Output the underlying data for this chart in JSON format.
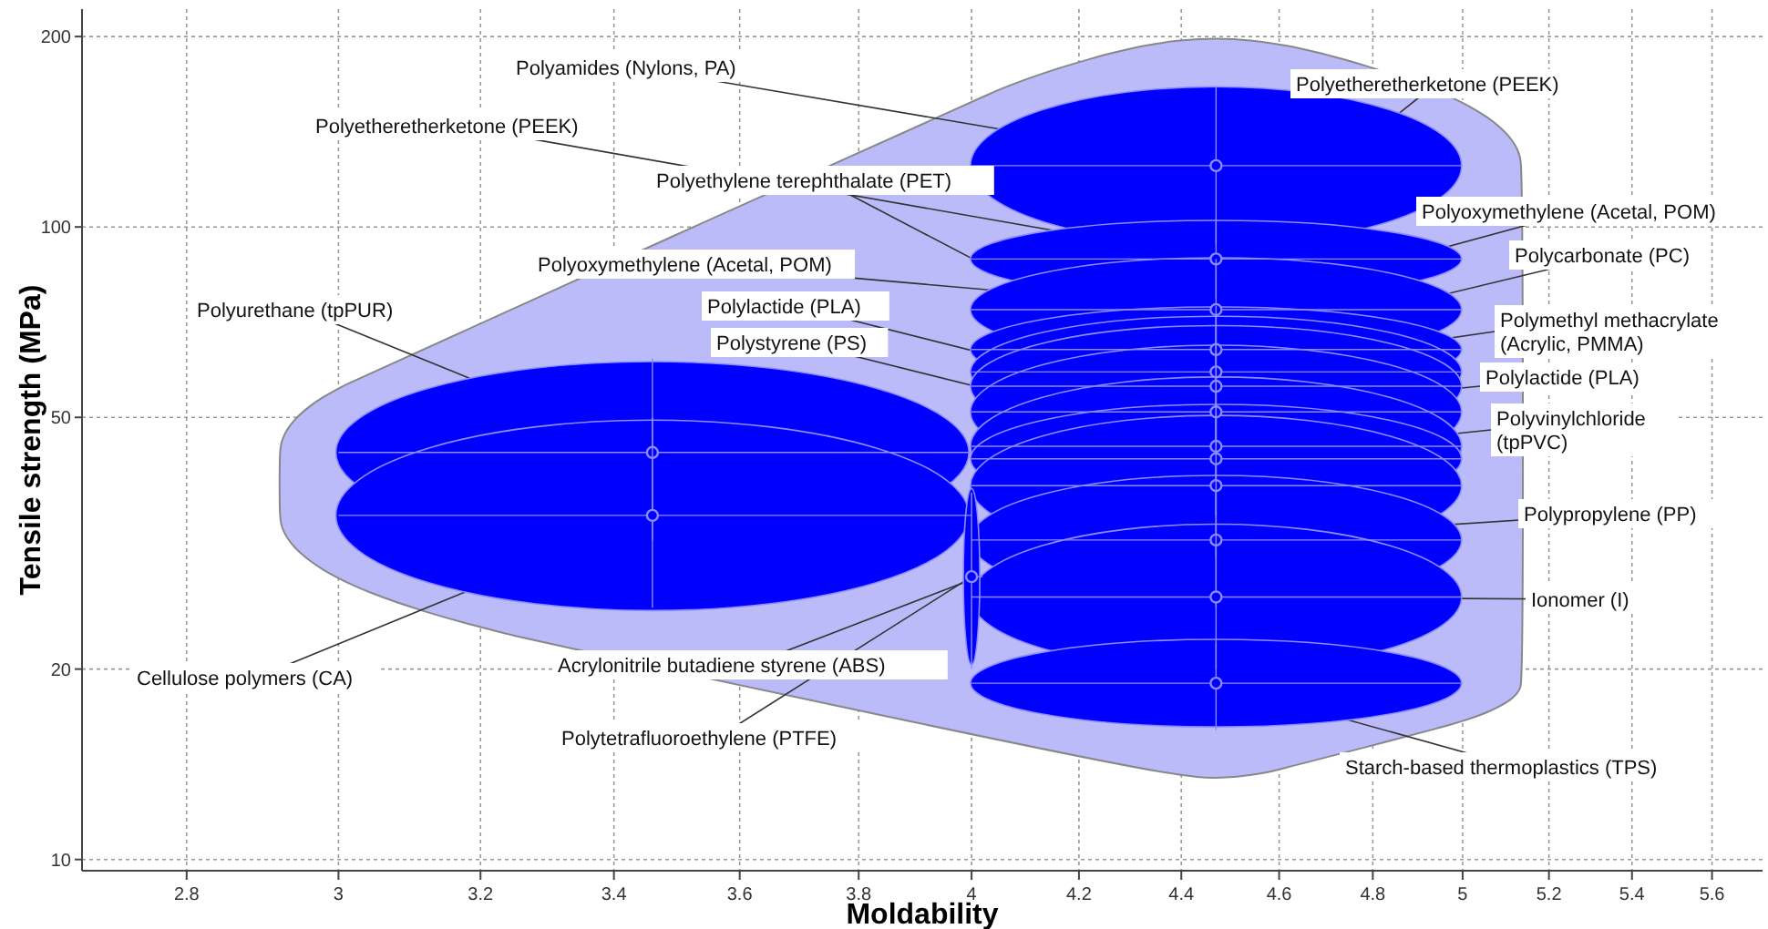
{
  "chart_data": {
    "type": "scatter",
    "xlabel": "Moldability",
    "ylabel": "Tensile strength (MPa)",
    "log": "xy",
    "grid": true,
    "marker": "circle",
    "xlim": [
      2.67,
      5.73
    ],
    "xticks": [
      2.8,
      3,
      3.2,
      3.4,
      3.6,
      3.8,
      4,
      4.2,
      4.4,
      4.6,
      4.8,
      5,
      5.2,
      5.4,
      5.6
    ],
    "ylim": [
      9.6,
      221
    ],
    "yticks": [
      10,
      20,
      50,
      100,
      200
    ],
    "series": [
      {
        "color": "#0000ff",
        "x": [
          3.46
        ],
        "values": [
          44
        ],
        "xerrors": [
          [
            3,
            4
          ]
        ],
        "errors": [
          [
            32,
            62
          ]
        ]
      },
      {
        "color": "#0000ff",
        "x": [
          3.46
        ],
        "values": [
          35
        ],
        "xerrors": [
          [
            3,
            4
          ]
        ],
        "errors": [
          [
            25,
            50
          ]
        ]
      },
      {
        "color": "#0000ff",
        "x": [
          4.47
        ],
        "values": [
          125
        ],
        "xerrors": [
          [
            4,
            5
          ]
        ],
        "errors": [
          [
            94,
            167
          ]
        ]
      },
      {
        "color": "#0000ff",
        "x": [
          4.47
        ],
        "values": [
          89
        ],
        "xerrors": [
          [
            4,
            5
          ]
        ],
        "errors": [
          [
            77,
            102
          ]
        ]
      },
      {
        "color": "#0000ff",
        "x": [
          4.47
        ],
        "values": [
          74
        ],
        "xerrors": [
          [
            4,
            5
          ]
        ],
        "errors": [
          [
            61,
            89
          ]
        ]
      },
      {
        "color": "#0000ff",
        "x": [
          4.47
        ],
        "values": [
          64
        ],
        "xerrors": [
          [
            4,
            5
          ]
        ],
        "errors": [
          [
            55,
            75
          ]
        ]
      },
      {
        "color": "#0000ff",
        "x": [
          4.47
        ],
        "values": [
          59
        ],
        "xerrors": [
          [
            4,
            5
          ]
        ],
        "errors": [
          [
            48,
            72
          ]
        ]
      },
      {
        "color": "#0000ff",
        "x": [
          4.47
        ],
        "values": [
          56
        ],
        "xerrors": [
          [
            4,
            5
          ]
        ],
        "errors": [
          [
            45,
            70
          ]
        ]
      },
      {
        "color": "#0000ff",
        "x": [
          4.47
        ],
        "values": [
          51
        ],
        "xerrors": [
          [
            4,
            5
          ]
        ],
        "errors": [
          [
            40,
            65
          ]
        ]
      },
      {
        "color": "#0000ff",
        "x": [
          4.47
        ],
        "values": [
          45
        ],
        "xerrors": [
          [
            4,
            5
          ]
        ],
        "errors": [
          [
            35,
            58
          ]
        ]
      },
      {
        "color": "#0000ff",
        "x": [
          4.47
        ],
        "values": [
          43
        ],
        "xerrors": [
          [
            4,
            5
          ]
        ],
        "errors": [
          [
            35,
            52
          ]
        ]
      },
      {
        "color": "#0000ff",
        "x": [
          4.47
        ],
        "values": [
          39
        ],
        "xerrors": [
          [
            4,
            5
          ]
        ],
        "errors": [
          [
            30,
            50
          ]
        ]
      },
      {
        "color": "#0000ff",
        "x": [
          4.47
        ],
        "values": [
          32
        ],
        "xerrors": [
          [
            4,
            5
          ]
        ],
        "errors": [
          [
            25,
            40
          ]
        ]
      },
      {
        "color": "#0000ff",
        "x": [
          4.47
        ],
        "values": [
          26
        ],
        "xerrors": [
          [
            4,
            5
          ]
        ],
        "errors": [
          [
            20,
            34
          ]
        ]
      },
      {
        "color": "#0000ff",
        "x": [
          4.47
        ],
        "values": [
          19
        ],
        "xerrors": [
          [
            4,
            5
          ]
        ],
        "errors": [
          [
            16,
            22
          ]
        ]
      },
      {
        "color": "#0000ff",
        "x": [
          4
        ],
        "values": [
          28
        ],
        "xerrors": [
          [
            3.99,
            4.02
          ]
        ],
        "errors": [
          [
            20,
            38
          ]
        ]
      }
    ],
    "annotations": [
      {
        "text": "Polyamides (Nylons, PA)",
        "x": 4.47,
        "y": 125
      },
      {
        "text": "Polyetheretherketone (PEEK)",
        "x": 4.47,
        "y": 89
      },
      {
        "text": "Polyethylene terephthalate (PET)",
        "x": 4.47,
        "y": 56
      },
      {
        "text": "Polyoxymethylene (Acetal, POM)",
        "x": 4.47,
        "y": 74
      },
      {
        "text": "Polylactide (PLA)",
        "x": 4.47,
        "y": 51
      },
      {
        "text": "Polystyrene (PS)",
        "x": 4.47,
        "y": 45
      },
      {
        "text": "Polyurethane (tpPUR)",
        "x": 3.46,
        "y": 44
      },
      {
        "text": "Cellulose polymers (CA)",
        "x": 3.46,
        "y": 35
      },
      {
        "text": "Acrylonitrile butadiene styrene (ABS)",
        "x": 4.47,
        "y": 39
      },
      {
        "text": "Polytetrafluoroethylene (PTFE)",
        "x": 4,
        "y": 28
      },
      {
        "text": "Polyetheretherketone (PEEK)",
        "x": 4.47,
        "y": 89
      },
      {
        "text": "Polyoxymethylene (Acetal, POM)",
        "x": 4.47,
        "y": 74
      },
      {
        "text": "Polycarbonate (PC)",
        "x": 4.47,
        "y": 64
      },
      {
        "text": "Polymethyl methacrylate (Acrylic, PMMA)",
        "x": 4.47,
        "y": 59
      },
      {
        "text": "Polylactide (PLA)",
        "x": 4.47,
        "y": 51
      },
      {
        "text": "Polyvinylchloride (tpPVC)",
        "x": 4.47,
        "y": 43
      },
      {
        "text": "Polypropylene (PP)",
        "x": 4.47,
        "y": 32
      },
      {
        "text": "Ionomer (I)",
        "x": 4.47,
        "y": 26
      },
      {
        "text": "Starch-based thermoplastics (TPS)",
        "x": 4.47,
        "y": 19
      }
    ]
  }
}
